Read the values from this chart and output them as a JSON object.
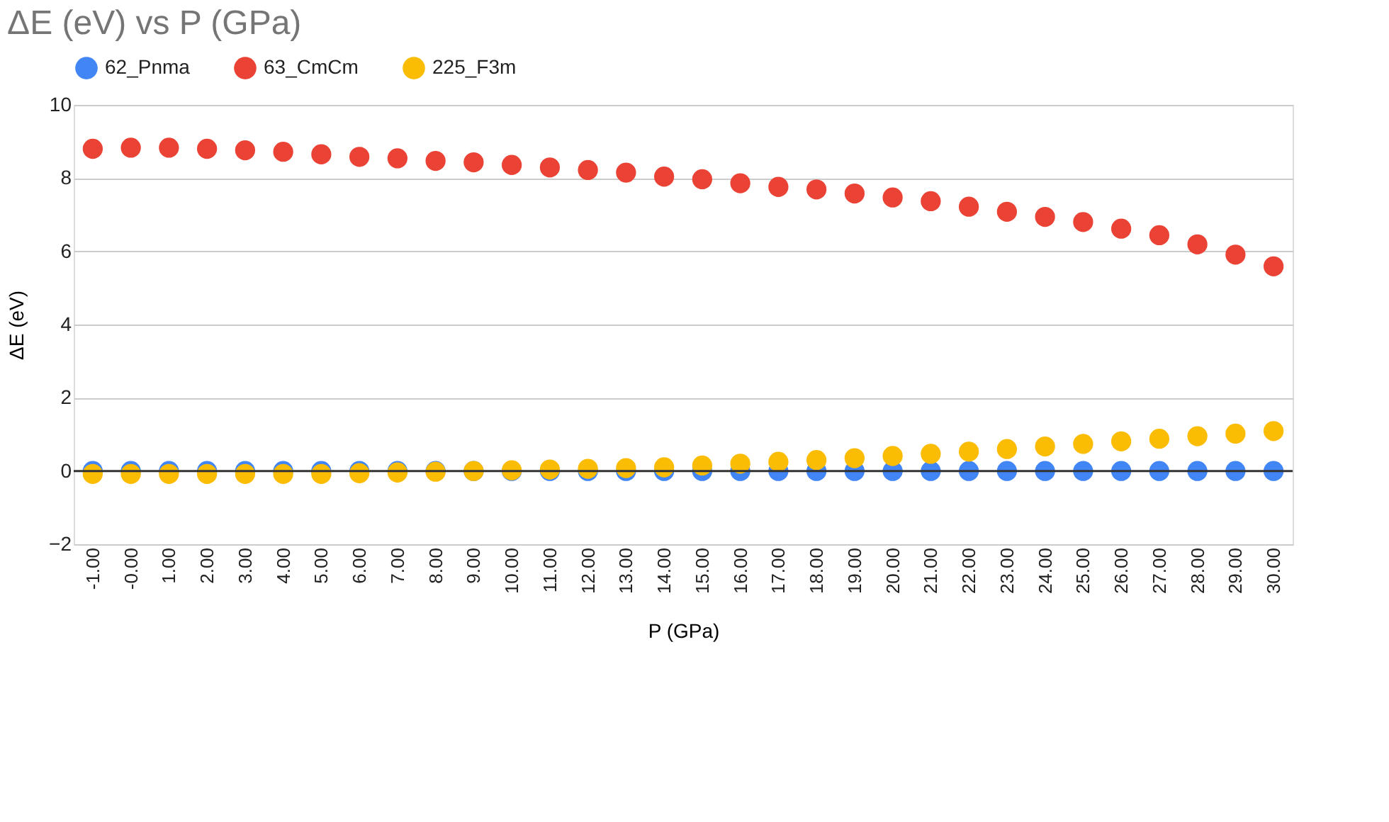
{
  "chart_data": {
    "type": "scatter",
    "title": "ΔE (eV) vs P (GPa)",
    "xlabel": "P (GPa)",
    "ylabel": "ΔE (eV)",
    "categories": [
      "-1.00",
      "-0.00",
      "1.00",
      "2.00",
      "3.00",
      "4.00",
      "5.00",
      "6.00",
      "7.00",
      "8.00",
      "9.00",
      "10.00",
      "11.00",
      "12.00",
      "13.00",
      "14.00",
      "15.00",
      "16.00",
      "17.00",
      "18.00",
      "19.00",
      "20.00",
      "21.00",
      "22.00",
      "23.00",
      "24.00",
      "25.00",
      "26.00",
      "27.00",
      "28.00",
      "29.00",
      "30.00"
    ],
    "series": [
      {
        "name": "62_Pnma",
        "color": "#4285f4",
        "values": [
          0,
          0,
          0,
          0,
          0,
          0,
          0,
          0,
          0,
          0,
          0,
          0,
          0,
          0,
          0,
          0,
          0,
          0,
          0,
          0,
          0,
          0,
          0,
          0,
          0,
          0,
          0,
          0,
          0,
          0,
          0,
          0
        ]
      },
      {
        "name": "63_CmCm",
        "color": "#ea4335",
        "values": [
          8.8,
          8.83,
          8.83,
          8.8,
          8.76,
          8.72,
          8.65,
          8.58,
          8.54,
          8.47,
          8.43,
          8.36,
          8.29,
          8.22,
          8.15,
          8.04,
          7.97,
          7.86,
          7.76,
          7.69,
          7.58,
          7.47,
          7.37,
          7.22,
          7.08,
          6.94,
          6.8,
          6.62,
          6.44,
          6.19,
          5.91,
          5.59
        ]
      },
      {
        "name": "225_F3m",
        "color": "#fbbc04",
        "values": [
          -0.08,
          -0.08,
          -0.08,
          -0.08,
          -0.08,
          -0.08,
          -0.08,
          -0.06,
          -0.04,
          -0.02,
          0,
          0.02,
          0.04,
          0.06,
          0.08,
          0.1,
          0.15,
          0.2,
          0.25,
          0.3,
          0.35,
          0.41,
          0.47,
          0.53,
          0.6,
          0.67,
          0.74,
          0.81,
          0.88,
          0.95,
          1.02,
          1.09
        ]
      }
    ],
    "ylim": [
      -2,
      10
    ],
    "yticks": [
      -2,
      0,
      2,
      4,
      6,
      8,
      10
    ],
    "grid": "y",
    "legend": "top",
    "marker": "circle",
    "ref_lines": [
      {
        "axis": "y",
        "value": 0,
        "color": "#333333"
      }
    ]
  }
}
